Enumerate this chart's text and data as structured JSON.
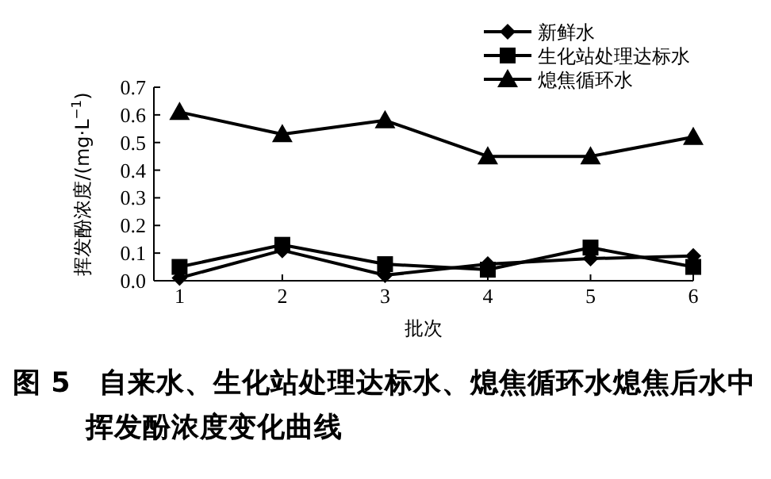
{
  "chart_data": {
    "type": "line",
    "title": "图 5　自来水、生化站处理达标水、熄焦循环水熄焦后水中挥发酚浓度变化曲线",
    "xlabel": "批次",
    "ylabel": "挥发酚浓度/(mg·L$^{−1}$)",
    "x": [
      1,
      2,
      3,
      4,
      5,
      6
    ],
    "series": [
      {
        "name": "新鲜水",
        "color": "#000000",
        "marker": "diamond",
        "values": [
          0.01,
          0.11,
          0.02,
          0.06,
          0.08,
          0.09
        ]
      },
      {
        "name": "生化站处理达标水",
        "color": "#000000",
        "marker": "square",
        "values": [
          0.05,
          0.13,
          0.06,
          0.04,
          0.12,
          0.05
        ]
      },
      {
        "name": "熄焦循环水",
        "color": "#000000",
        "marker": "triangle",
        "values": [
          0.61,
          0.53,
          0.58,
          0.45,
          0.45,
          0.52
        ]
      }
    ],
    "xlim": [
      0.75,
      6
    ],
    "xticks": [
      1,
      2,
      3,
      4,
      5,
      6
    ],
    "ylim": [
      0,
      0.7
    ],
    "yticks": [
      "0.0",
      0.1,
      0.2,
      0.3,
      0.4,
      0.5,
      0.6,
      0.7
    ],
    "grid": false,
    "legend": "top right"
  }
}
